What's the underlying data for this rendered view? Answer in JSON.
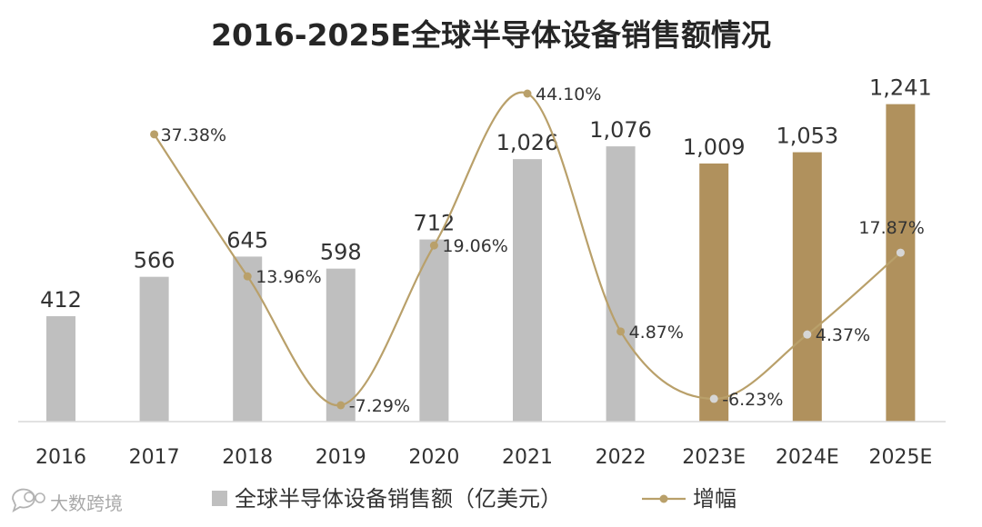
{
  "chart_data": {
    "type": "bar",
    "title": "2016-2025E全球半导体设备销售额情况",
    "categories": [
      "2016",
      "2017",
      "2018",
      "2019",
      "2020",
      "2021",
      "2022",
      "2023E",
      "2024E",
      "2025E"
    ],
    "series": [
      {
        "name": "全球半导体设备销售额（亿美元）",
        "kind": "bar",
        "values": [
          412,
          566,
          645,
          598,
          712,
          1026,
          1076,
          1009,
          1053,
          1241
        ],
        "labels": [
          "412",
          "566",
          "645",
          "598",
          "712",
          "1,026",
          "1,076",
          "1,009",
          "1,053",
          "1,241"
        ],
        "forecast_from_index": 7
      },
      {
        "name": "增幅",
        "kind": "line",
        "values": [
          null,
          37.38,
          13.96,
          -7.29,
          19.06,
          44.1,
          4.87,
          -6.23,
          4.37,
          17.87
        ],
        "labels": [
          "",
          "37.38%",
          "13.96%",
          "-7.29%",
          "19.06%",
          "44.10%",
          "4.87%",
          "-6.23%",
          "4.37%",
          "17.87%"
        ]
      }
    ],
    "ylim_bar": [
      0,
      1300
    ],
    "ylim_line": [
      -10,
      50
    ],
    "colors": {
      "bar_actual": "#bfbfbf",
      "bar_forecast": "#b0915d",
      "line": "#b9a06a",
      "marker_on_forecast": "#d6d6d6",
      "axis": "#d9d9d9",
      "text": "#333333"
    },
    "legend": {
      "position": "bottom",
      "bar_label": "全球半导体设备销售额（亿美元）",
      "line_label": "增幅"
    }
  },
  "watermark": {
    "text": "大数跨境",
    "icon": "chat-bubble-icon"
  }
}
